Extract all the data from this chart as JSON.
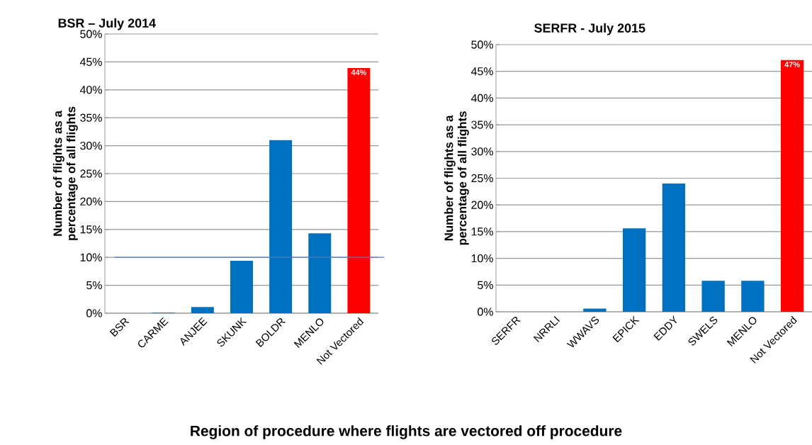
{
  "chart_data": [
    {
      "type": "bar",
      "title": "BSR – July 2014",
      "ylabel": "Number of flights as a percentage of all flights",
      "categories": [
        "BSR",
        "CARME",
        "ANJEE",
        "SKUNK",
        "BOLDR",
        "MENLO",
        "Not Vectored"
      ],
      "values": [
        0,
        0.1,
        1.1,
        9.4,
        31.0,
        14.3,
        43.9
      ],
      "colors": [
        "#0070c0",
        "#0070c0",
        "#0070c0",
        "#0070c0",
        "#0070c0",
        "#0070c0",
        "#ff0000"
      ],
      "value_labels": [
        null,
        null,
        null,
        null,
        null,
        null,
        "44%"
      ],
      "ylim": [
        0,
        50
      ],
      "yticks": [
        {
          "value": 0,
          "label": "0%"
        },
        {
          "value": 5,
          "label": "5%"
        },
        {
          "value": 10,
          "label": "10%"
        },
        {
          "value": 15,
          "label": "15%"
        },
        {
          "value": 20,
          "label": "20%"
        },
        {
          "value": 25,
          "label": "25%"
        },
        {
          "value": 30,
          "label": "30%"
        },
        {
          "value": 35,
          "label": "35%"
        },
        {
          "value": 40,
          "label": "40%"
        },
        {
          "value": 45,
          "label": "45%"
        },
        {
          "value": 50,
          "label": "50%"
        }
      ],
      "ref_lines": [
        {
          "axis": "y",
          "value": 10,
          "color": "#4f81bd"
        }
      ],
      "grid": "y"
    },
    {
      "type": "bar",
      "title": "SERFR - July 2015",
      "ylabel": "Number of flights as a percentage of all flights",
      "xlabel": "Region of procedure where flights are vectored off procedure",
      "categories": [
        "SERFR",
        "NRRLI",
        "WWAVS",
        "EPICK",
        "EDDY",
        "SWELS",
        "MENLO",
        "Not Vectored"
      ],
      "values": [
        0,
        0,
        0.6,
        15.6,
        24.0,
        5.8,
        5.8,
        47.1
      ],
      "colors": [
        "#0070c0",
        "#0070c0",
        "#0070c0",
        "#0070c0",
        "#0070c0",
        "#0070c0",
        "#0070c0",
        "#ff0000"
      ],
      "value_labels": [
        null,
        null,
        null,
        null,
        null,
        null,
        null,
        "47%"
      ],
      "ylim": [
        0,
        50
      ],
      "yticks": [
        {
          "value": 0,
          "label": "0%"
        },
        {
          "value": 5,
          "label": "5%"
        },
        {
          "value": 10,
          "label": "10%"
        },
        {
          "value": 15,
          "label": "15%"
        },
        {
          "value": 20,
          "label": "20%"
        },
        {
          "value": 25,
          "label": "25%"
        },
        {
          "value": 30,
          "label": "30%"
        },
        {
          "value": 35,
          "label": "35%"
        },
        {
          "value": 40,
          "label": "40%"
        },
        {
          "value": 45,
          "label": "45%"
        },
        {
          "value": 50,
          "label": "50%"
        }
      ],
      "grid": "y"
    }
  ]
}
